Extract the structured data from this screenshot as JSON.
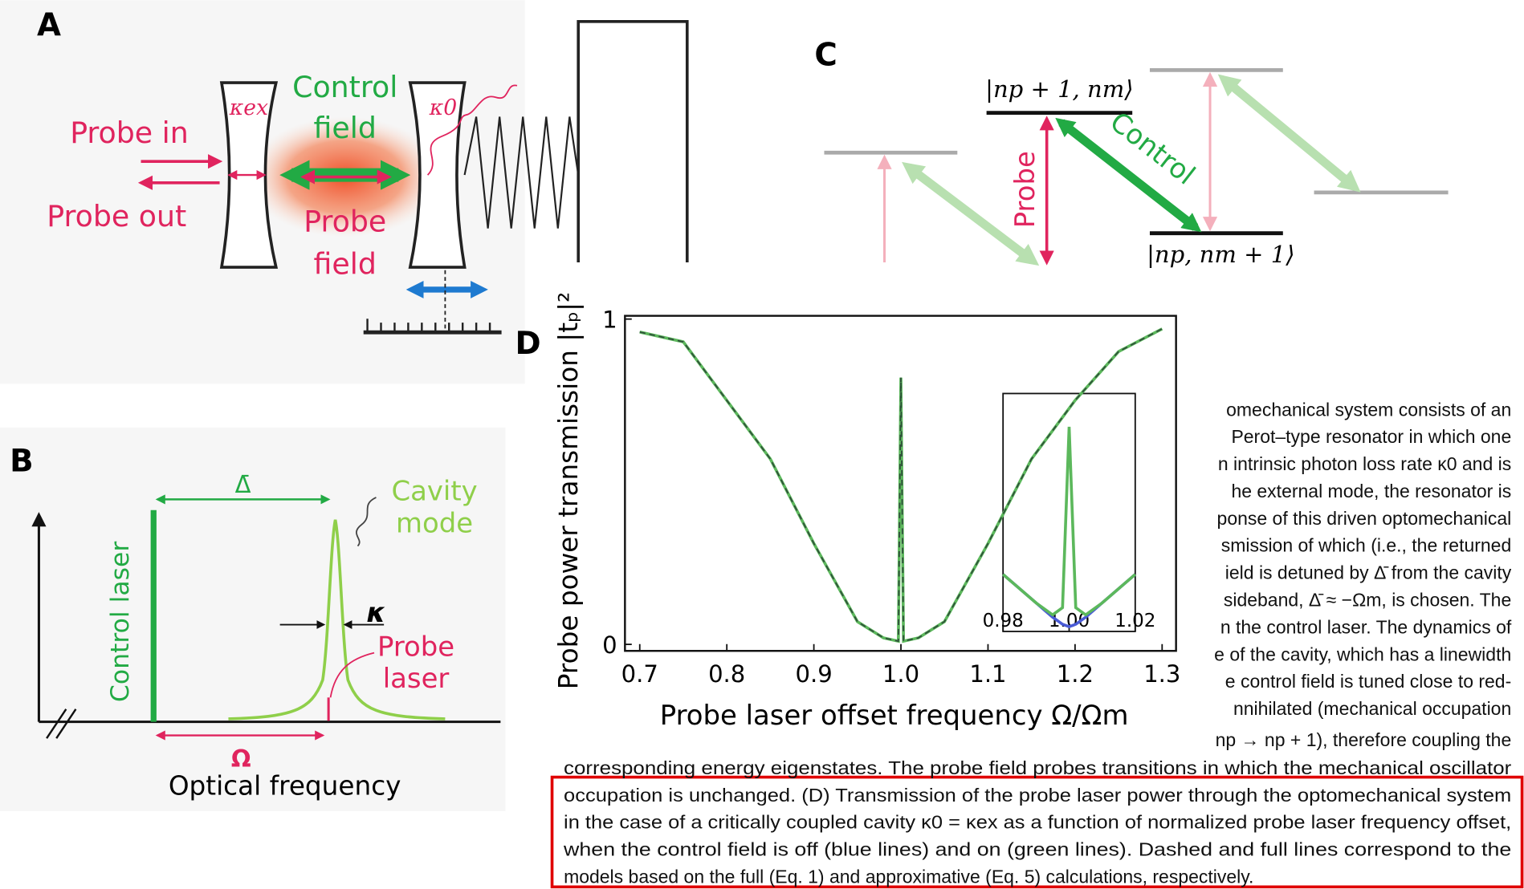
{
  "panel_a": {
    "label": "A",
    "control_field": [
      "Control",
      "field"
    ],
    "probe_field": [
      "Probe",
      "field"
    ],
    "kappa_ex": "κex",
    "kappa_0": "κ0",
    "probe_in": "Probe in",
    "probe_out": "Probe out"
  },
  "panel_b": {
    "label": "B",
    "detuning": "Δ̄",
    "cavity_mode": [
      "Cavity",
      "mode"
    ],
    "control_laser": "Control laser",
    "kappa": "κ",
    "probe_laser": [
      "Probe",
      "laser"
    ],
    "omega": "Ω",
    "x_label": "Optical frequency"
  },
  "panel_c": {
    "label": "C",
    "upper_state": "|np + 1, nm⟩",
    "lower_state": "|np, nm + 1⟩",
    "probe": "Probe",
    "control": "Control"
  },
  "panel_d_label": "D",
  "chart_data": [
    {
      "type": "line",
      "y_label": "Probe power transmission |tₚ|²",
      "x_label": "Probe laser offset frequency Ω/Ωm",
      "x": [
        0.7,
        0.75,
        0.8,
        0.85,
        0.9,
        0.95,
        0.98,
        0.997,
        1.0,
        1.003,
        1.02,
        1.05,
        1.1,
        1.15,
        1.2,
        1.25,
        1.3
      ],
      "series": [
        {
          "color": "#5cb85c",
          "values": [
            0.96,
            0.93,
            0.75,
            0.57,
            0.31,
            0.07,
            0.02,
            0.01,
            0.82,
            0.01,
            0.02,
            0.07,
            0.31,
            0.57,
            0.75,
            0.9,
            0.97
          ]
        }
      ],
      "line_style": "dashed",
      "xlim": [
        0.683,
        1.316
      ],
      "ylim": [
        -0.02,
        1.01
      ],
      "xticks": [
        0.7,
        0.8,
        0.9,
        {
          "value": 1,
          "label": "1.0"
        },
        1.1,
        1.2,
        1.3
      ],
      "yticks": [
        0,
        1
      ]
    },
    {
      "type": "line",
      "x": [
        0.98,
        0.985,
        0.99,
        0.995,
        0.998,
        1.0,
        1.002,
        1.005,
        1.01,
        1.015,
        1.02
      ],
      "series": [
        {
          "color": "#4a5bd6",
          "values": [
            0.24,
            0.18,
            0.12,
            0.06,
            0.03,
            0.02,
            0.03,
            0.06,
            0.12,
            0.18,
            0.24
          ]
        },
        {
          "color": "#5cb85c",
          "values": [
            0.24,
            0.18,
            0.12,
            0.07,
            0.1,
            0.86,
            0.1,
            0.07,
            0.12,
            0.18,
            0.24
          ]
        }
      ],
      "xlim": [
        0.98,
        1.02
      ],
      "ylim": [
        0,
        1
      ],
      "xticks": [
        0.98,
        {
          "value": 1,
          "label": "1.00"
        },
        1.02
      ]
    }
  ],
  "text": {
    "column_lines": [
      "omechanical system consists of an",
      "Perot–type resonator in which one",
      "n intrinsic photon loss rate κ0 and is",
      "he external mode, the resonator is",
      "ponse of this driven optomechanical",
      "smission of which (i.e., the returned",
      "ield is detuned by Δ̄ from the cavity",
      "sideband, Δ̄ ≈ −Ωm, is chosen. The",
      "n the control laser. The dynamics of",
      "e of the cavity, which has a linewidth",
      "e control field is tuned close to red-",
      "nnihilated (mechanical occupation",
      "np → np + 1), therefore coupling the"
    ],
    "full_line": "corresponding energy eigenstates. The probe field probes transitions in which the mechanical oscillator",
    "caption_lines": [
      "occupation is unchanged. (D) Transmission of the probe laser power through the optomechanical system",
      "in the case of a critically coupled cavity κ0 = κex as a function of normalized probe laser frequency offset,",
      "when the control field is off (blue lines) and on (green lines). Dashed and full lines correspond to the",
      "models based on the full (Eq. 1) and approximative (Eq. 5) calculations, respectively."
    ]
  }
}
